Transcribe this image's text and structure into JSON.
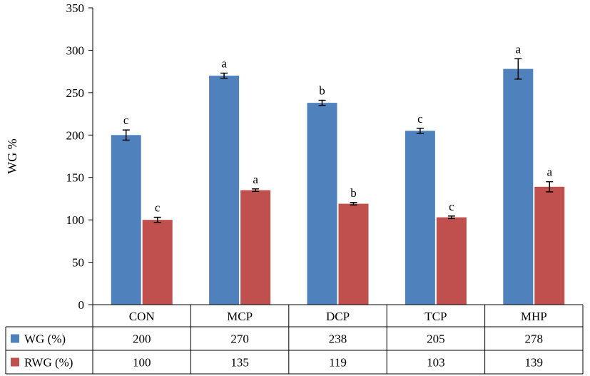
{
  "chart_data": {
    "type": "bar",
    "categories": [
      "CON",
      "MCP",
      "DCP",
      "TCP",
      "MHP"
    ],
    "ylabel": "WG %",
    "ylim": [
      0,
      350
    ],
    "yticks": [
      0,
      50,
      100,
      150,
      200,
      250,
      300,
      350
    ],
    "grid": false,
    "legend": "data-table-below",
    "series": [
      {
        "name": "WG (%)",
        "color": "#4F81BD",
        "values": [
          200,
          270,
          238,
          205,
          278
        ],
        "errors": [
          6,
          3,
          3,
          3,
          12
        ],
        "significance": [
          "c",
          "a",
          "b",
          "c",
          "a"
        ]
      },
      {
        "name": "RWG (%)",
        "color": "#C0504D",
        "values": [
          100,
          135,
          119,
          103,
          139
        ],
        "errors": [
          3,
          1.5,
          1.5,
          1.5,
          6
        ],
        "significance": [
          "c",
          "a",
          "b",
          "c",
          "a"
        ]
      }
    ]
  }
}
